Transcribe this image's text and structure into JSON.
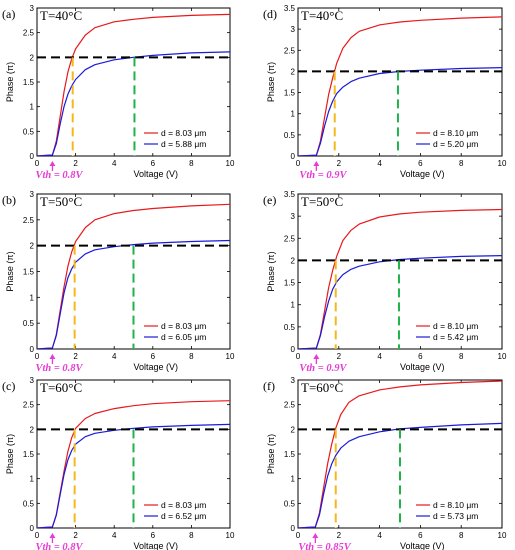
{
  "figure": {
    "colors": {
      "series_a": "#e8191c",
      "series_b": "#1a1adc",
      "ref_line": "#000000",
      "v_orange": "#f5b81c",
      "v_green": "#1fb34a",
      "vth": "#e83ad6"
    }
  },
  "chart_data": [
    {
      "type": "line",
      "panel": "(a)",
      "title": "T=40°C",
      "xlabel": "Voltage (V)",
      "ylabel": "Phase (π)",
      "xlim": [
        0,
        10
      ],
      "ylim": [
        0,
        3
      ],
      "x_ticks": [
        "0",
        "2",
        "4",
        "6",
        "8",
        "10"
      ],
      "y_ticks": [
        "0",
        "0.5",
        "1",
        "1.5",
        "2",
        "2.5",
        "3"
      ],
      "vth_label": "Vth = 0.8V",
      "vth": 0.8,
      "ref_y": 2,
      "v_orange": 1.85,
      "v_green": 5.05,
      "legend_loc": "lower-right",
      "series": [
        {
          "name": "d = 8.03 μm",
          "color": "series_a",
          "x": [
            0,
            0.8,
            1.0,
            1.2,
            1.4,
            1.6,
            1.8,
            2,
            2.5,
            3,
            4,
            5,
            6,
            8,
            10
          ],
          "values": [
            0,
            0.02,
            0.3,
            0.8,
            1.3,
            1.7,
            1.97,
            2.17,
            2.45,
            2.6,
            2.72,
            2.77,
            2.81,
            2.85,
            2.87
          ]
        },
        {
          "name": "d = 5.88 μm",
          "color": "series_b",
          "x": [
            0,
            0.8,
            1.0,
            1.2,
            1.4,
            1.6,
            1.8,
            2,
            2.5,
            3,
            4,
            5,
            6,
            8,
            10
          ],
          "values": [
            0,
            0.02,
            0.25,
            0.65,
            1.0,
            1.25,
            1.42,
            1.55,
            1.75,
            1.85,
            1.95,
            2.0,
            2.04,
            2.09,
            2.11
          ]
        }
      ]
    },
    {
      "type": "line",
      "panel": "(d)",
      "title": "T=40°C",
      "xlabel": "Voltage (V)",
      "ylabel": "Phase (π)",
      "xlim": [
        0,
        10
      ],
      "ylim": [
        0,
        3.5
      ],
      "x_ticks": [
        "0",
        "2",
        "4",
        "6",
        "8",
        "10"
      ],
      "y_ticks": [
        "0",
        "0.5",
        "1",
        "1.5",
        "2",
        "2.5",
        "3",
        "3.5"
      ],
      "vth_label": "Vth = 0.9V",
      "vth": 0.9,
      "ref_y": 2,
      "v_orange": 1.8,
      "v_green": 4.9,
      "legend_loc": "lower-right",
      "series": [
        {
          "name": "d = 8.10 μm",
          "color": "series_a",
          "x": [
            0,
            0.9,
            1.1,
            1.3,
            1.5,
            1.7,
            1.9,
            2.2,
            2.6,
            3,
            4,
            5,
            6,
            8,
            10
          ],
          "values": [
            0,
            0.02,
            0.35,
            0.9,
            1.45,
            1.85,
            2.2,
            2.55,
            2.8,
            2.95,
            3.1,
            3.17,
            3.21,
            3.26,
            3.29
          ]
        },
        {
          "name": "d = 5.20 μm",
          "color": "series_b",
          "x": [
            0,
            0.9,
            1.1,
            1.3,
            1.5,
            1.7,
            1.9,
            2.2,
            2.6,
            3,
            4,
            5,
            6,
            8,
            10
          ],
          "values": [
            0,
            0.02,
            0.3,
            0.7,
            1.05,
            1.3,
            1.48,
            1.63,
            1.76,
            1.84,
            1.95,
            2.0,
            2.03,
            2.07,
            2.09
          ]
        }
      ]
    },
    {
      "type": "line",
      "panel": "(b)",
      "title": "T=50°C",
      "xlabel": "Voltage (V)",
      "ylabel": "Phase (π)",
      "xlim": [
        0,
        10
      ],
      "ylim": [
        0,
        3
      ],
      "x_ticks": [
        "0",
        "2",
        "4",
        "6",
        "8",
        "10"
      ],
      "y_ticks": [
        "0",
        "0.5",
        "1",
        "1.5",
        "2",
        "2.5",
        "3"
      ],
      "vth_label": "Vth = 0.8V",
      "vth": 0.8,
      "ref_y": 2,
      "v_orange": 1.95,
      "v_green": 5.0,
      "legend_loc": "lower-right",
      "series": [
        {
          "name": "d = 8.03 μm",
          "color": "series_a",
          "x": [
            0,
            0.8,
            1.0,
            1.2,
            1.4,
            1.6,
            1.8,
            2,
            2.5,
            3,
            4,
            5,
            6,
            8,
            10
          ],
          "values": [
            0,
            0.02,
            0.28,
            0.75,
            1.2,
            1.6,
            1.88,
            2.08,
            2.35,
            2.5,
            2.62,
            2.68,
            2.72,
            2.77,
            2.8
          ]
        },
        {
          "name": "d = 6.05 μm",
          "color": "series_b",
          "x": [
            0,
            0.8,
            1.0,
            1.2,
            1.4,
            1.6,
            1.8,
            2,
            2.5,
            3,
            4,
            5,
            6,
            8,
            10
          ],
          "values": [
            0,
            0.02,
            0.26,
            0.68,
            1.08,
            1.38,
            1.55,
            1.68,
            1.84,
            1.92,
            1.98,
            2.02,
            2.05,
            2.08,
            2.1
          ]
        }
      ]
    },
    {
      "type": "line",
      "panel": "(e)",
      "title": "T=50°C",
      "xlabel": "Voltage (V)",
      "ylabel": "Phase (π)",
      "xlim": [
        0,
        10
      ],
      "ylim": [
        0,
        3.5
      ],
      "x_ticks": [
        "0",
        "2",
        "4",
        "6",
        "8",
        "10"
      ],
      "y_ticks": [
        "0",
        "0.5",
        "1",
        "1.5",
        "2",
        "2.5",
        "3",
        "3.5"
      ],
      "vth_label": "Vth = 0.9V",
      "vth": 0.9,
      "ref_y": 2,
      "v_orange": 1.85,
      "v_green": 4.95,
      "legend_loc": "lower-right",
      "series": [
        {
          "name": "d = 8.10 μm",
          "color": "series_a",
          "x": [
            0,
            0.9,
            1.1,
            1.3,
            1.5,
            1.7,
            1.9,
            2.2,
            2.6,
            3,
            4,
            5,
            6,
            8,
            10
          ],
          "values": [
            0,
            0.02,
            0.33,
            0.85,
            1.38,
            1.78,
            2.1,
            2.45,
            2.68,
            2.82,
            2.98,
            3.05,
            3.09,
            3.13,
            3.15
          ]
        },
        {
          "name": "d = 5.42 μm",
          "color": "series_b",
          "x": [
            0,
            0.9,
            1.1,
            1.3,
            1.5,
            1.7,
            1.9,
            2.2,
            2.6,
            3,
            4,
            5,
            6,
            8,
            10
          ],
          "values": [
            0,
            0.02,
            0.3,
            0.72,
            1.08,
            1.35,
            1.52,
            1.68,
            1.8,
            1.87,
            1.97,
            2.02,
            2.05,
            2.09,
            2.11
          ]
        }
      ]
    },
    {
      "type": "line",
      "panel": "(c)",
      "title": "T=60°C",
      "xlabel": "Voltage (V)",
      "ylabel": "Phase (π)",
      "xlim": [
        0,
        10
      ],
      "ylim": [
        0,
        3
      ],
      "x_ticks": [
        "0",
        "2",
        "4",
        "6",
        "8",
        "10"
      ],
      "y_ticks": [
        "0",
        "0.5",
        "1",
        "1.5",
        "2",
        "2.5",
        "3"
      ],
      "vth_label": "Vth = 0.8V",
      "vth": 0.8,
      "ref_y": 2,
      "v_orange": 1.95,
      "v_green": 5.0,
      "legend_loc": "lower-right",
      "series": [
        {
          "name": "d = 8.03 μm",
          "color": "series_a",
          "x": [
            0,
            0.8,
            1.0,
            1.2,
            1.4,
            1.6,
            1.8,
            2,
            2.5,
            3,
            4,
            5,
            6,
            8,
            10
          ],
          "values": [
            0,
            0.02,
            0.27,
            0.72,
            1.15,
            1.55,
            1.83,
            2.02,
            2.22,
            2.32,
            2.42,
            2.48,
            2.52,
            2.56,
            2.58
          ]
        },
        {
          "name": "d = 6.52 μm",
          "color": "series_b",
          "x": [
            0,
            0.8,
            1.0,
            1.2,
            1.4,
            1.6,
            1.8,
            2,
            2.5,
            3,
            4,
            5,
            6,
            8,
            10
          ],
          "values": [
            0,
            0.02,
            0.26,
            0.68,
            1.08,
            1.38,
            1.57,
            1.7,
            1.85,
            1.92,
            1.98,
            2.02,
            2.05,
            2.08,
            2.1
          ]
        }
      ]
    },
    {
      "type": "line",
      "panel": "(f)",
      "title": "T=60°C",
      "xlabel": "Voltage (V)",
      "ylabel": "Phase (π)",
      "xlim": [
        0,
        10
      ],
      "ylim": [
        0,
        3
      ],
      "x_ticks": [
        "0",
        "2",
        "4",
        "6",
        "8",
        "10"
      ],
      "y_ticks": [
        "0",
        "0.5",
        "1",
        "1.5",
        "2",
        "2.5",
        "3"
      ],
      "vth_label": "Vth = 0.85V",
      "vth": 0.85,
      "ref_y": 2,
      "v_orange": 1.85,
      "v_green": 5.0,
      "legend_loc": "lower-right",
      "series": [
        {
          "name": "d = 8.10 μm",
          "color": "series_a",
          "x": [
            0,
            0.85,
            1.05,
            1.25,
            1.45,
            1.65,
            1.85,
            2.1,
            2.5,
            3,
            4,
            5,
            6,
            8,
            10
          ],
          "values": [
            0,
            0.02,
            0.3,
            0.8,
            1.3,
            1.7,
            2.02,
            2.3,
            2.55,
            2.68,
            2.8,
            2.86,
            2.9,
            2.95,
            2.98
          ]
        },
        {
          "name": "d = 5.73 μm",
          "color": "series_b",
          "x": [
            0,
            0.85,
            1.05,
            1.25,
            1.45,
            1.65,
            1.85,
            2.1,
            2.5,
            3,
            4,
            5,
            6,
            8,
            10
          ],
          "values": [
            0,
            0.02,
            0.26,
            0.68,
            1.05,
            1.3,
            1.47,
            1.62,
            1.76,
            1.85,
            1.95,
            2.01,
            2.04,
            2.09,
            2.12
          ]
        }
      ]
    }
  ]
}
